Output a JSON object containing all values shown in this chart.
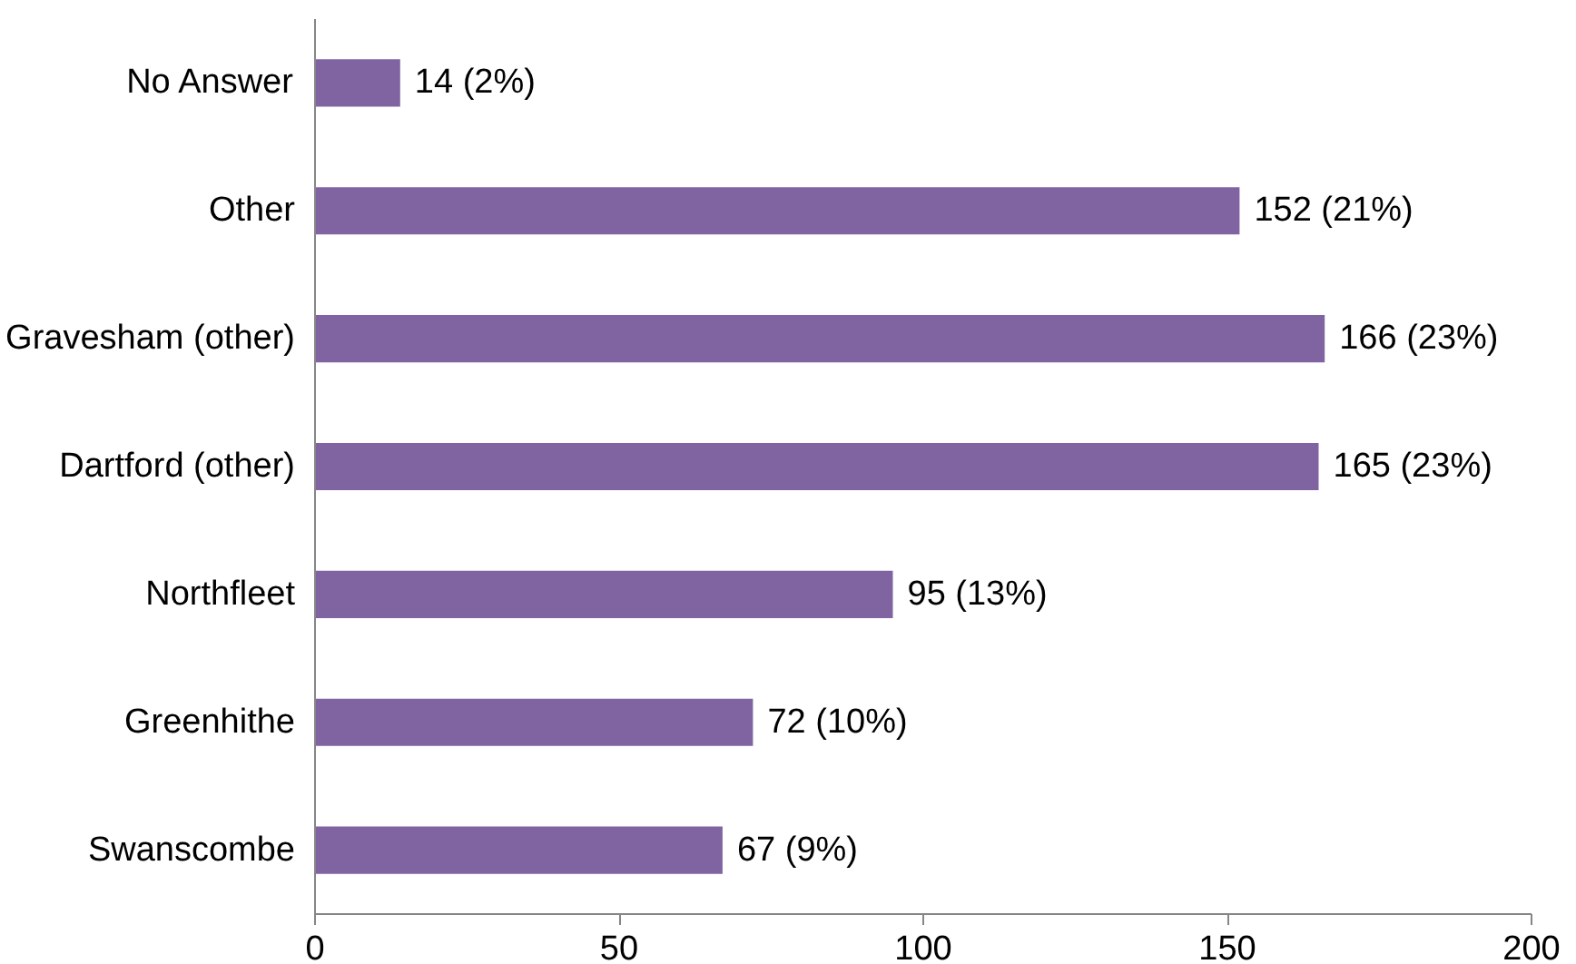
{
  "chart_data": {
    "type": "bar",
    "orientation": "horizontal",
    "categories": [
      "No Answer",
      "Other",
      "Gravesham (other)",
      "Dartford (other)",
      "Northfleet",
      "Greenhithe",
      "Swanscombe"
    ],
    "values": [
      14,
      152,
      166,
      165,
      95,
      72,
      67
    ],
    "value_labels": [
      "14 (2%)",
      "152 (21%)",
      "166 (23%)",
      "165 (23%)",
      "95 (13%)",
      "72 (10%)",
      "67 (9%)"
    ],
    "color": "#8064a2",
    "xlim": [
      0,
      200
    ],
    "xticks": [
      0,
      50,
      100,
      150,
      200
    ],
    "grid": false
  }
}
